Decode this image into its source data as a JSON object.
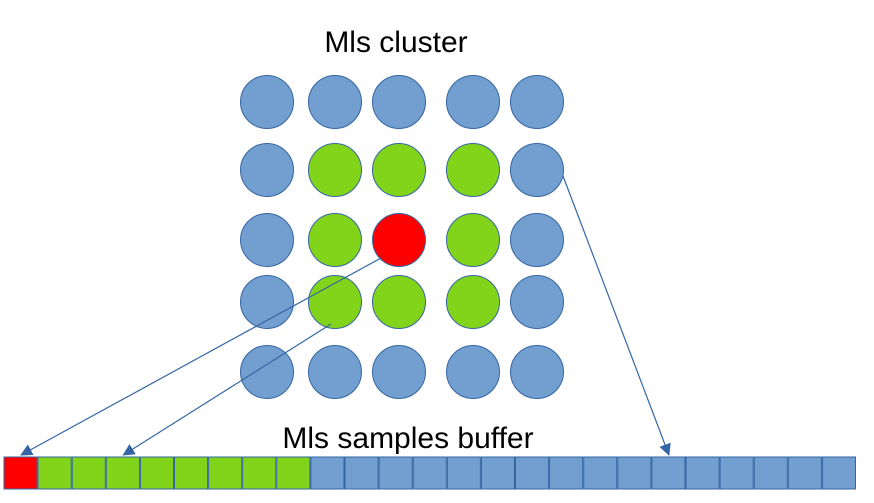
{
  "diagram": {
    "cluster_title": "Mls cluster",
    "buffer_title": "Mls samples buffer"
  },
  "cluster": {
    "rows": [
      [
        "blue",
        "blue",
        "blue",
        "blue",
        "blue"
      ],
      [
        "blue",
        "green",
        "green",
        "green",
        "blue"
      ],
      [
        "blue",
        "green",
        "red",
        "green",
        "blue"
      ],
      [
        "blue",
        "green",
        "green",
        "green",
        "blue"
      ],
      [
        "blue",
        "blue",
        "blue",
        "blue",
        "blue"
      ]
    ]
  },
  "buffer": {
    "cells": [
      "red",
      "green",
      "green",
      "green",
      "green",
      "green",
      "green",
      "green",
      "green",
      "blue",
      "blue",
      "blue",
      "blue",
      "blue",
      "blue",
      "blue",
      "blue",
      "blue",
      "blue",
      "blue",
      "blue",
      "blue",
      "blue",
      "blue",
      "blue"
    ]
  },
  "arrows": [
    {
      "from": "cluster.2.2",
      "to": "buffer.0"
    },
    {
      "from": "cluster.3.1",
      "to": "buffer.3"
    },
    {
      "from": "cluster.1.4",
      "to": "buffer.19"
    }
  ],
  "colors": {
    "blue_fill": "#729fcf",
    "blue_stroke": "#3465a4",
    "green_fill": "#81d41a",
    "green_stroke": "#3465a4",
    "red_fill": "#ff0000",
    "red_stroke": "#3465a4",
    "arrow": "#3465a4"
  }
}
